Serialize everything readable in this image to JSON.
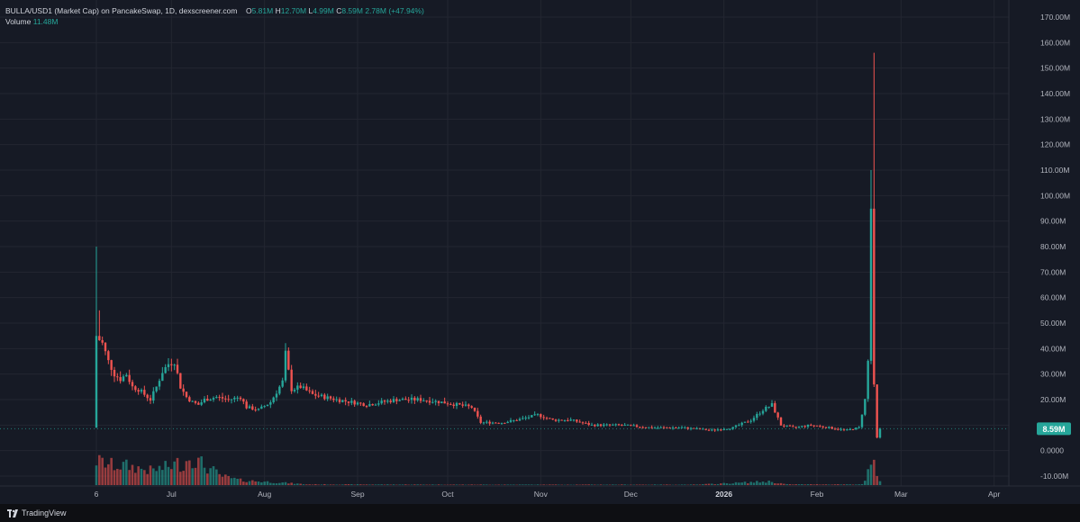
{
  "legend": {
    "symbol": "BULLA/USD1 (Market Cap) on PancakeSwap, 1D, dexscreener.com",
    "o_label": "O",
    "o_value": "5.81M",
    "h_label": "H",
    "h_value": "12.70M",
    "l_label": "L",
    "l_value": "4.99M",
    "c_label": "C",
    "c_value": "8.59M",
    "change": "2.78M (+47.94%)",
    "volume_label": "Volume",
    "volume_value": "11.48M"
  },
  "price_badge": "8.59M",
  "footer": {
    "brand": "TradingView"
  },
  "colors": {
    "up": "#26a69a",
    "down": "#ef5350",
    "bg": "#161a25",
    "grid": "#232631",
    "text": "#b2b5be"
  },
  "chart_data": {
    "type": "candlestick",
    "y_axis_ticks": [
      "170.00M",
      "160.00M",
      "150.00M",
      "140.00M",
      "130.00M",
      "120.00M",
      "110.00M",
      "100.00M",
      "90.00M",
      "80.00M",
      "70.00M",
      "60.00M",
      "50.00M",
      "40.00M",
      "30.00M",
      "20.00M",
      "10.00M",
      "0.0000",
      "-10.00M"
    ],
    "ylim": [
      -10,
      170
    ],
    "y_unit": "M",
    "x_axis_ticks": [
      {
        "label": "6",
        "date": "2025-06-06",
        "bold": false
      },
      {
        "label": "Jul",
        "date": "2025-07-01",
        "bold": false
      },
      {
        "label": "Aug",
        "date": "2025-08-01",
        "bold": false
      },
      {
        "label": "Sep",
        "date": "2025-09-01",
        "bold": false
      },
      {
        "label": "Oct",
        "date": "2025-10-01",
        "bold": false
      },
      {
        "label": "Nov",
        "date": "2025-11-01",
        "bold": false
      },
      {
        "label": "Dec",
        "date": "2025-12-01",
        "bold": false
      },
      {
        "label": "2026",
        "date": "2026-01-01",
        "bold": true
      },
      {
        "label": "Feb",
        "date": "2026-02-01",
        "bold": false
      },
      {
        "label": "Mar",
        "date": "2026-03-01",
        "bold": false
      },
      {
        "label": "Apr",
        "date": "2026-04-01",
        "bold": false
      }
    ],
    "start_date": "2025-06-06",
    "close_path": [
      [
        0,
        45
      ],
      [
        2,
        42
      ],
      [
        4,
        35
      ],
      [
        6,
        30
      ],
      [
        8,
        28
      ],
      [
        10,
        30
      ],
      [
        12,
        25
      ],
      [
        14,
        24
      ],
      [
        16,
        22
      ],
      [
        18,
        20
      ],
      [
        20,
        25
      ],
      [
        22,
        31
      ],
      [
        24,
        34
      ],
      [
        26,
        35
      ],
      [
        28,
        25
      ],
      [
        30,
        21
      ],
      [
        32,
        19
      ],
      [
        34,
        18
      ],
      [
        36,
        20
      ],
      [
        40,
        21
      ],
      [
        44,
        20
      ],
      [
        48,
        21
      ],
      [
        50,
        17
      ],
      [
        54,
        16
      ],
      [
        58,
        19
      ],
      [
        62,
        27
      ],
      [
        63,
        38
      ],
      [
        65,
        24
      ],
      [
        68,
        25
      ],
      [
        72,
        22
      ],
      [
        80,
        20
      ],
      [
        90,
        18
      ],
      [
        100,
        20
      ],
      [
        108,
        20
      ],
      [
        115,
        19
      ],
      [
        125,
        17
      ],
      [
        128,
        11
      ],
      [
        135,
        11
      ],
      [
        140,
        12
      ],
      [
        147,
        14
      ],
      [
        152,
        12
      ],
      [
        158,
        12
      ],
      [
        165,
        10
      ],
      [
        175,
        10
      ],
      [
        185,
        9
      ],
      [
        195,
        9
      ],
      [
        205,
        8
      ],
      [
        212,
        9
      ],
      [
        218,
        12
      ],
      [
        222,
        16
      ],
      [
        225,
        18
      ],
      [
        228,
        10
      ],
      [
        232,
        9
      ],
      [
        238,
        10
      ],
      [
        244,
        9
      ],
      [
        250,
        8
      ],
      [
        254,
        9
      ],
      [
        256,
        20
      ],
      [
        257,
        35
      ],
      [
        258,
        95
      ],
      [
        259,
        25
      ],
      [
        260,
        5
      ],
      [
        261,
        8.59
      ]
    ],
    "spikes": [
      {
        "day": 0,
        "high": 80
      },
      {
        "day": 1,
        "high": 55
      },
      {
        "day": 258,
        "high": 110
      },
      {
        "day": 259,
        "high": 156
      }
    ],
    "volume_path": [
      [
        0,
        10
      ],
      [
        3,
        9
      ],
      [
        6,
        8
      ],
      [
        10,
        8
      ],
      [
        14,
        7
      ],
      [
        18,
        6
      ],
      [
        22,
        7
      ],
      [
        25,
        8
      ],
      [
        27,
        9
      ],
      [
        29,
        8
      ],
      [
        31,
        12
      ],
      [
        33,
        10
      ],
      [
        35,
        9
      ],
      [
        37,
        7
      ],
      [
        39,
        6
      ],
      [
        41,
        4
      ],
      [
        44,
        3
      ],
      [
        48,
        2
      ],
      [
        55,
        1.5
      ],
      [
        62,
        1
      ],
      [
        70,
        0.3
      ],
      [
        120,
        0.2
      ],
      [
        200,
        0.2
      ],
      [
        224,
        1.5
      ],
      [
        230,
        0.3
      ],
      [
        255,
        0.3
      ],
      [
        256,
        2
      ],
      [
        257,
        5
      ],
      [
        258,
        7
      ],
      [
        259,
        9
      ],
      [
        260,
        4
      ],
      [
        261,
        2
      ]
    ],
    "last_price": 8.59
  }
}
